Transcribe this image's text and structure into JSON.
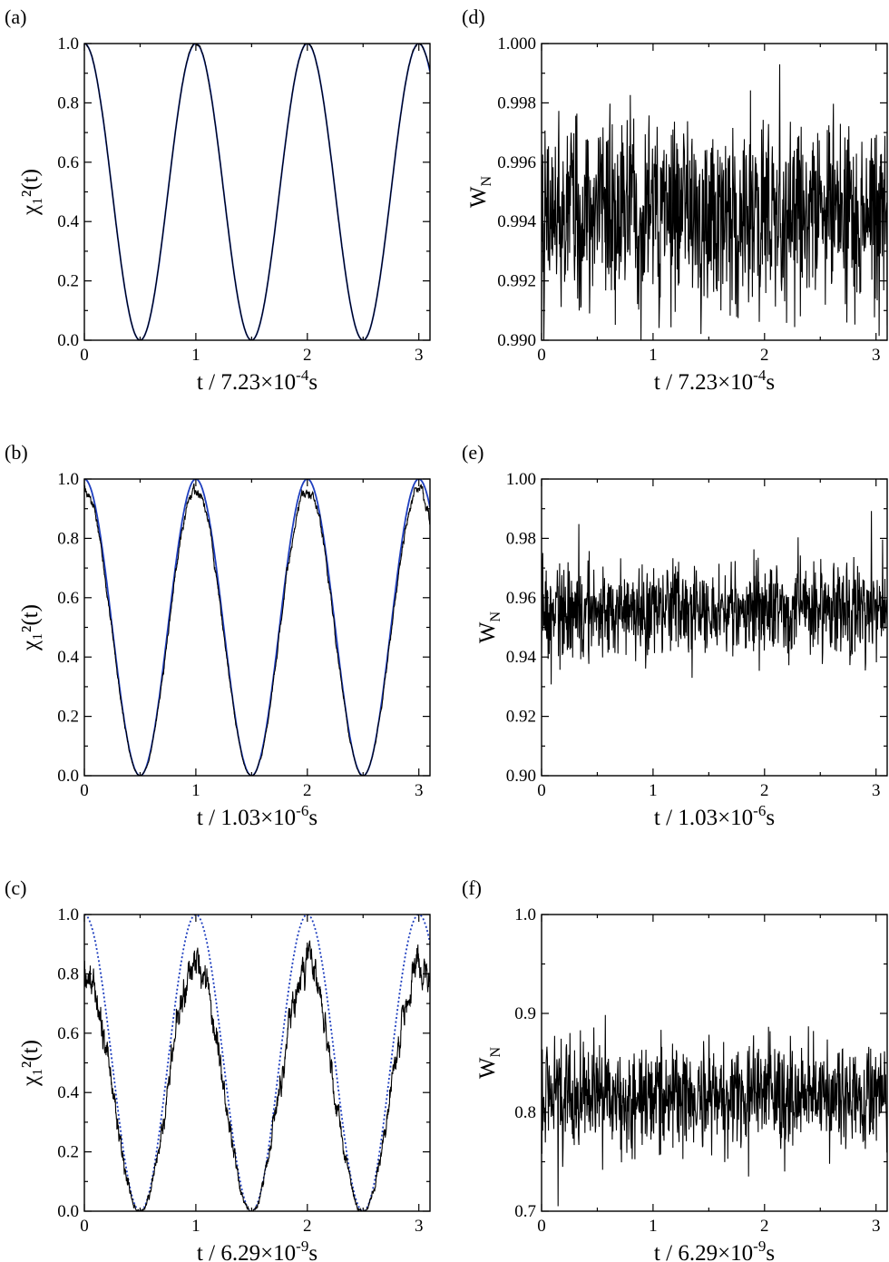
{
  "chart_data": [
    {
      "id": "a",
      "type": "line",
      "panel_label": "(a)",
      "ylabel": "χ₁²(t)",
      "xlabel": {
        "prefix": "t / 7.23×10",
        "exponent": "-4",
        "suffix": "s"
      },
      "xlim": [
        0,
        3.1
      ],
      "ylim": [
        0,
        1
      ],
      "xticks": [
        0,
        1,
        2,
        3
      ],
      "xtick_labels": [
        "0",
        "1",
        "2",
        "3"
      ],
      "yticks": [
        0,
        0.2,
        0.4,
        0.6,
        0.8,
        1.0
      ],
      "ytick_labels": [
        "0.0",
        "0.2",
        "0.4",
        "0.6",
        "0.8",
        "1.0"
      ],
      "series": [
        {
          "kind": "reference",
          "formula": "cos²(πt)",
          "color": "#1f3fbf",
          "style": "solid"
        },
        {
          "kind": "simulated",
          "amplitude": 1.0,
          "noise": 0.004,
          "color": "#000000",
          "style": "solid"
        }
      ]
    },
    {
      "id": "b",
      "type": "line",
      "panel_label": "(b)",
      "ylabel": "χ₁²(t)",
      "xlabel": {
        "prefix": "t / 1.03×10",
        "exponent": "-6",
        "suffix": "s"
      },
      "xlim": [
        0,
        3.1
      ],
      "ylim": [
        0,
        1
      ],
      "xticks": [
        0,
        1,
        2,
        3
      ],
      "xtick_labels": [
        "0",
        "1",
        "2",
        "3"
      ],
      "yticks": [
        0,
        0.2,
        0.4,
        0.6,
        0.8,
        1.0
      ],
      "ytick_labels": [
        "0.0",
        "0.2",
        "0.4",
        "0.6",
        "0.8",
        "1.0"
      ],
      "series": [
        {
          "kind": "reference",
          "formula": "cos²(πt)",
          "color": "#1f3fbf",
          "style": "solid"
        },
        {
          "kind": "simulated",
          "amplitude": 0.96,
          "noise": 0.02,
          "color": "#000000",
          "style": "solid"
        }
      ]
    },
    {
      "id": "c",
      "type": "line",
      "panel_label": "(c)",
      "ylabel": "χ₁²(t)",
      "xlabel": {
        "prefix": "t / 6.29×10",
        "exponent": "-9",
        "suffix": "s"
      },
      "xlim": [
        0,
        3.1
      ],
      "ylim": [
        0,
        1
      ],
      "xticks": [
        0,
        1,
        2,
        3
      ],
      "xtick_labels": [
        "0",
        "1",
        "2",
        "3"
      ],
      "yticks": [
        0,
        0.2,
        0.4,
        0.6,
        0.8,
        1.0
      ],
      "ytick_labels": [
        "0.0",
        "0.2",
        "0.4",
        "0.6",
        "0.8",
        "1.0"
      ],
      "series": [
        {
          "kind": "reference",
          "formula": "cos²(πt)",
          "color": "#1f3fbf",
          "style": "dotted"
        },
        {
          "kind": "simulated",
          "amplitude": 0.82,
          "noise": 0.07,
          "color": "#000000",
          "style": "solid"
        }
      ]
    },
    {
      "id": "d",
      "type": "line",
      "panel_label": "(d)",
      "ylabel": "W_N",
      "xlabel": {
        "prefix": "t / 7.23×10",
        "exponent": "-4",
        "suffix": "s"
      },
      "xlim": [
        0,
        3.1
      ],
      "ylim": [
        0.99,
        1.0
      ],
      "xticks": [
        0,
        1,
        2,
        3
      ],
      "xtick_labels": [
        "0",
        "1",
        "2",
        "3"
      ],
      "yticks": [
        0.99,
        0.992,
        0.994,
        0.996,
        0.998,
        1.0
      ],
      "ytick_labels": [
        "0.990",
        "0.992",
        "0.994",
        "0.996",
        "0.998",
        "1.000"
      ],
      "series": [
        {
          "kind": "noisy",
          "mean": 0.9943,
          "spread": 0.0022,
          "max": 0.9993,
          "min": 0.99,
          "color": "#000000"
        }
      ]
    },
    {
      "id": "e",
      "type": "line",
      "panel_label": "(e)",
      "ylabel": "W_N",
      "xlabel": {
        "prefix": "t / 1.03×10",
        "exponent": "-6",
        "suffix": "s"
      },
      "xlim": [
        0,
        3.1
      ],
      "ylim": [
        0.9,
        1.0
      ],
      "xticks": [
        0,
        1,
        2,
        3
      ],
      "xtick_labels": [
        "0",
        "1",
        "2",
        "3"
      ],
      "yticks": [
        0.9,
        0.92,
        0.94,
        0.96,
        0.98,
        1.0
      ],
      "ytick_labels": [
        "0.90",
        "0.92",
        "0.94",
        "0.96",
        "0.98",
        "1.00"
      ],
      "series": [
        {
          "kind": "noisy",
          "mean": 0.956,
          "spread": 0.011,
          "max": 0.99,
          "min": 0.922,
          "color": "#000000"
        }
      ]
    },
    {
      "id": "f",
      "type": "line",
      "panel_label": "(f)",
      "ylabel": "W_N",
      "xlabel": {
        "prefix": "t / 6.29×10",
        "exponent": "-9",
        "suffix": "s"
      },
      "xlim": [
        0,
        3.1
      ],
      "ylim": [
        0.7,
        1.0
      ],
      "xticks": [
        0,
        1,
        2,
        3
      ],
      "xtick_labels": [
        "0",
        "1",
        "2",
        "3"
      ],
      "yticks": [
        0.7,
        0.8,
        0.9,
        1.0
      ],
      "ytick_labels": [
        "0.7",
        "0.8",
        "0.9",
        "1.0"
      ],
      "series": [
        {
          "kind": "noisy",
          "mean": 0.815,
          "spread": 0.038,
          "max": 0.915,
          "min": 0.705,
          "color": "#000000"
        }
      ]
    }
  ]
}
